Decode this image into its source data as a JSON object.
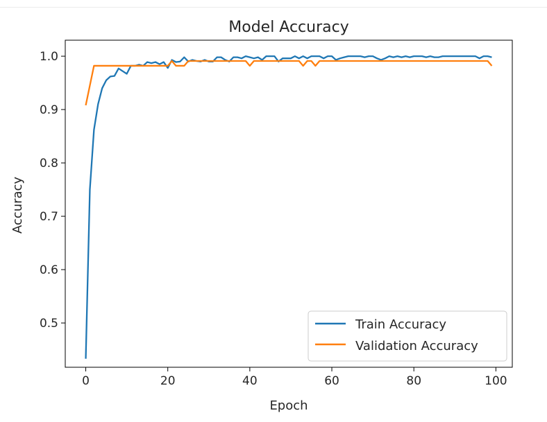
{
  "chart_data": {
    "type": "line",
    "title": "Model Accuracy",
    "xlabel": "Epoch",
    "ylabel": "Accuracy",
    "xlim": [
      -5,
      104
    ],
    "ylim": [
      0.417,
      1.03
    ],
    "xticks": [
      0,
      20,
      40,
      60,
      80,
      100
    ],
    "xtick_labels": [
      "0",
      "20",
      "40",
      "60",
      "80",
      "100"
    ],
    "yticks": [
      0.5,
      0.6,
      0.7,
      0.8,
      0.9,
      1.0
    ],
    "ytick_labels": [
      "0.5",
      "0.6",
      "0.7",
      "0.8",
      "0.9",
      "1.0"
    ],
    "grid": false,
    "legend_position": "lower right",
    "series": [
      {
        "name": "Train Accuracy",
        "color": "#1f77b4",
        "x": [
          0,
          1,
          2,
          3,
          4,
          5,
          6,
          7,
          8,
          9,
          10,
          11,
          12,
          13,
          14,
          15,
          16,
          17,
          18,
          19,
          20,
          21,
          22,
          23,
          24,
          25,
          26,
          27,
          28,
          29,
          30,
          31,
          32,
          33,
          34,
          35,
          36,
          37,
          38,
          39,
          40,
          41,
          42,
          43,
          44,
          45,
          46,
          47,
          48,
          49,
          50,
          51,
          52,
          53,
          54,
          55,
          56,
          57,
          58,
          59,
          60,
          61,
          62,
          63,
          64,
          65,
          66,
          67,
          68,
          69,
          70,
          71,
          72,
          73,
          74,
          75,
          76,
          77,
          78,
          79,
          80,
          81,
          82,
          83,
          84,
          85,
          86,
          87,
          88,
          89,
          90,
          91,
          92,
          93,
          94,
          95,
          96,
          97,
          98,
          99
        ],
        "values": [
          0.433,
          0.75,
          0.862,
          0.91,
          0.94,
          0.955,
          0.962,
          0.963,
          0.977,
          0.972,
          0.967,
          0.982,
          0.982,
          0.984,
          0.982,
          0.989,
          0.987,
          0.989,
          0.985,
          0.989,
          0.978,
          0.993,
          0.989,
          0.99,
          0.998,
          0.99,
          0.993,
          0.991,
          0.99,
          0.993,
          0.99,
          0.99,
          0.998,
          0.998,
          0.993,
          0.99,
          0.998,
          0.998,
          0.996,
          1.0,
          0.998,
          0.996,
          0.998,
          0.993,
          1.0,
          1.0,
          1.0,
          0.99,
          0.996,
          0.996,
          0.996,
          1.0,
          0.996,
          1.0,
          0.996,
          1.0,
          1.0,
          1.0,
          0.996,
          1.0,
          1.0,
          0.993,
          0.996,
          0.998,
          1.0,
          1.0,
          1.0,
          1.0,
          0.998,
          1.0,
          1.0,
          0.996,
          0.993,
          0.996,
          1.0,
          0.998,
          1.0,
          0.998,
          1.0,
          0.998,
          1.0,
          1.0,
          1.0,
          0.998,
          1.0,
          0.998,
          0.998,
          1.0,
          1.0,
          1.0,
          1.0,
          1.0,
          1.0,
          1.0,
          1.0,
          1.0,
          0.996,
          1.0,
          1.0,
          0.998
        ]
      },
      {
        "name": "Validation Accuracy",
        "color": "#ff7f0e",
        "x": [
          0,
          1,
          2,
          3,
          4,
          5,
          6,
          7,
          8,
          9,
          10,
          11,
          12,
          13,
          14,
          15,
          16,
          17,
          18,
          19,
          20,
          21,
          22,
          23,
          24,
          25,
          26,
          27,
          28,
          29,
          30,
          31,
          32,
          33,
          34,
          35,
          36,
          37,
          38,
          39,
          40,
          41,
          42,
          43,
          44,
          45,
          46,
          47,
          48,
          49,
          50,
          51,
          52,
          53,
          54,
          55,
          56,
          57,
          58,
          59,
          60,
          61,
          62,
          63,
          64,
          65,
          66,
          67,
          68,
          69,
          70,
          71,
          72,
          73,
          74,
          75,
          76,
          77,
          78,
          79,
          80,
          81,
          82,
          83,
          84,
          85,
          86,
          87,
          88,
          89,
          90,
          91,
          92,
          93,
          94,
          95,
          96,
          97,
          98,
          99
        ],
        "values": [
          0.908,
          0.945,
          0.982,
          0.982,
          0.982,
          0.982,
          0.982,
          0.982,
          0.982,
          0.982,
          0.982,
          0.982,
          0.982,
          0.982,
          0.982,
          0.982,
          0.982,
          0.982,
          0.982,
          0.982,
          0.982,
          0.991,
          0.982,
          0.982,
          0.982,
          0.991,
          0.991,
          0.991,
          0.991,
          0.991,
          0.991,
          0.991,
          0.991,
          0.991,
          0.991,
          0.991,
          0.991,
          0.991,
          0.991,
          0.991,
          0.982,
          0.991,
          0.991,
          0.991,
          0.991,
          0.991,
          0.991,
          0.991,
          0.991,
          0.991,
          0.991,
          0.991,
          0.991,
          0.982,
          0.991,
          0.991,
          0.982,
          0.991,
          0.991,
          0.991,
          0.991,
          0.991,
          0.991,
          0.991,
          0.991,
          0.991,
          0.991,
          0.991,
          0.991,
          0.991,
          0.991,
          0.991,
          0.991,
          0.991,
          0.991,
          0.991,
          0.991,
          0.991,
          0.991,
          0.991,
          0.991,
          0.991,
          0.991,
          0.991,
          0.991,
          0.991,
          0.991,
          0.991,
          0.991,
          0.991,
          0.991,
          0.991,
          0.991,
          0.991,
          0.991,
          0.991,
          0.991,
          0.991,
          0.991,
          0.982
        ]
      }
    ]
  }
}
